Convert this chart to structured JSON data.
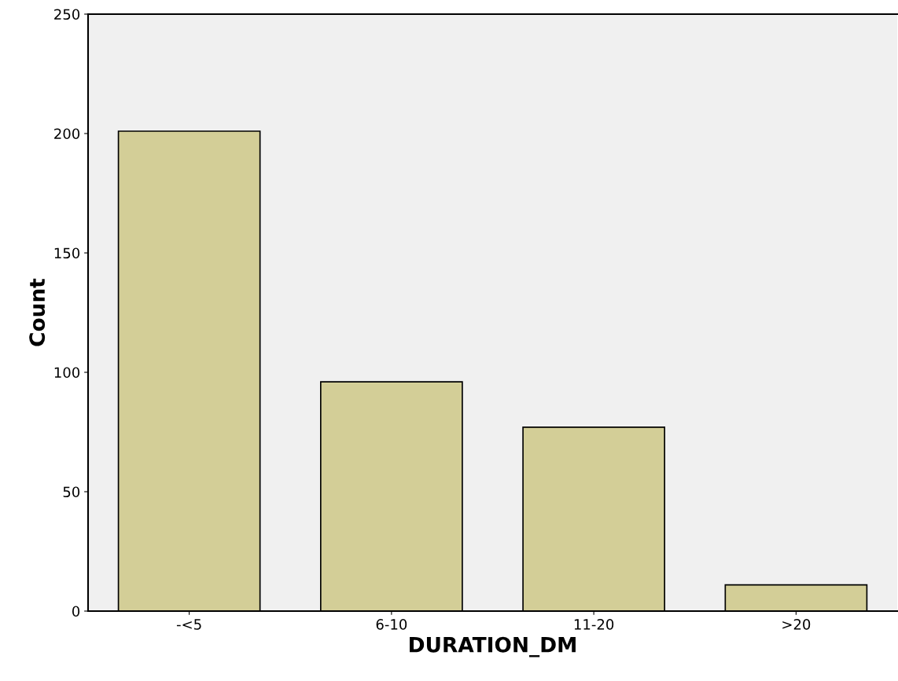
{
  "chart_data": {
    "type": "bar",
    "xlabel": "DURATION_DM",
    "ylabel": "Count",
    "categories": [
      "-<5",
      "6-10",
      "11-20",
      ">20"
    ],
    "values": [
      201,
      96,
      77,
      11
    ],
    "color": "#d3ce97",
    "ylim": [
      0,
      250
    ],
    "yticks": [
      0,
      50,
      100,
      150,
      200,
      250
    ],
    "grid": false
  }
}
